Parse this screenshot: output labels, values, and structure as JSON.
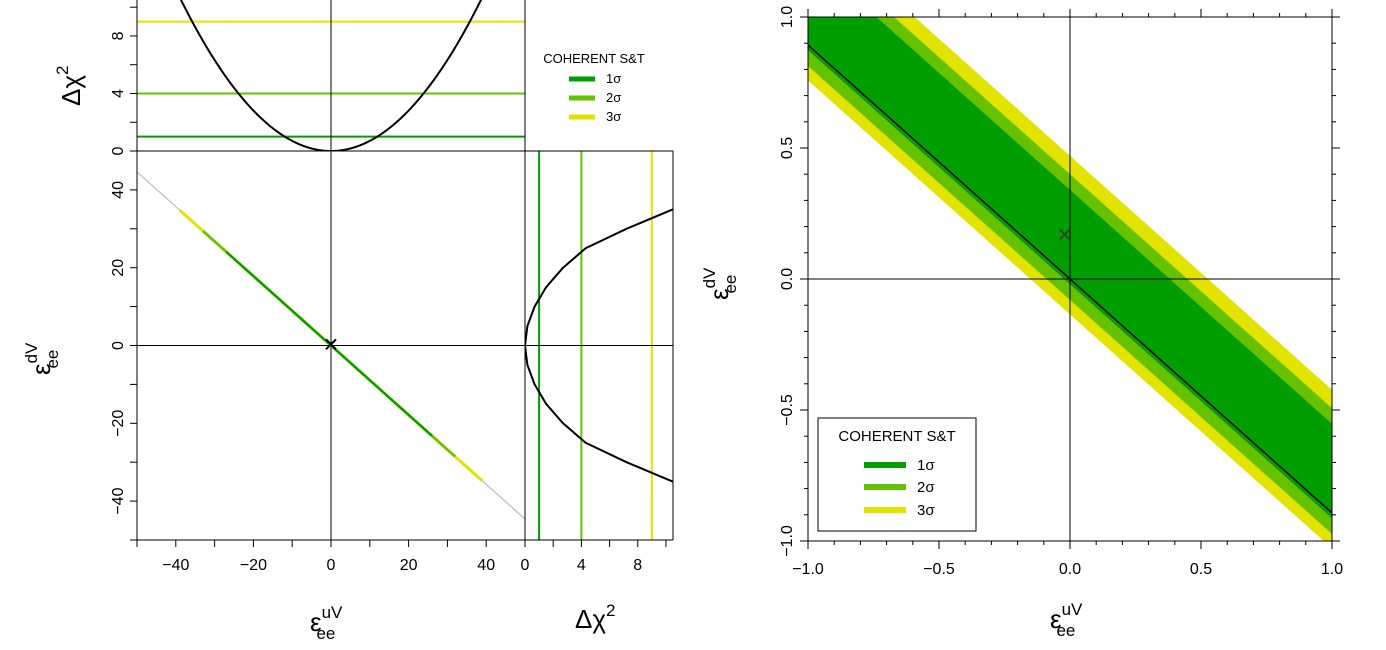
{
  "colors": {
    "sigma1": "#009E00",
    "sigma2": "#66C200",
    "sigma3": "#E3E300",
    "curve": "#000000",
    "grid": "#000000"
  },
  "legend": {
    "title": "COHERENT S&T",
    "items": [
      {
        "label": "1σ",
        "color": "#009E00"
      },
      {
        "label": "2σ",
        "color": "#66C200"
      },
      {
        "label": "3σ",
        "color": "#E3E300"
      }
    ]
  },
  "labels": {
    "eps_symbol": "ε",
    "eps_u_sup": "uV",
    "eps_d_sup": "dV",
    "eps_sub": "ee",
    "dchi_base": "Δχ",
    "dchi_sup": "2"
  },
  "chart_data": [
    {
      "id": "top-profile",
      "type": "line",
      "xlim": [
        -50,
        50
      ],
      "ylim": [
        0,
        10.5
      ],
      "yticks": [
        0,
        4,
        8
      ],
      "x": [
        -35,
        -30,
        -25,
        -20,
        -15,
        -10,
        -5,
        0,
        5,
        10,
        15,
        20,
        25,
        30,
        35
      ],
      "y": [
        8.6,
        6.3,
        4.4,
        2.8,
        1.6,
        0.72,
        0.18,
        0,
        0.18,
        0.72,
        1.6,
        2.8,
        4.4,
        6.3,
        8.6
      ],
      "levels": [
        1,
        4,
        9
      ]
    },
    {
      "id": "main-band",
      "type": "line",
      "xlim": [
        -50,
        50
      ],
      "ylim": [
        -50,
        50
      ],
      "xticks": [
        -40,
        -20,
        0,
        20,
        40
      ],
      "yticks": [
        -40,
        -20,
        0,
        20,
        40
      ],
      "gray_line": {
        "x": [
          -50,
          50
        ],
        "y": [
          44.6,
          -44.6
        ]
      },
      "band_3sigma": {
        "x": [
          -39,
          39
        ]
      },
      "band_2sigma": {
        "x": [
          -33,
          32
        ]
      },
      "band_1sigma": {
        "x": [
          -27,
          26
        ]
      },
      "best_fit": {
        "x": 0,
        "y": 0.3
      }
    },
    {
      "id": "right-profile",
      "type": "line",
      "xlim": [
        0,
        10.5
      ],
      "ylim": [
        -50,
        50
      ],
      "xticks": [
        0,
        4,
        8
      ],
      "y": [
        -35,
        -30,
        -25,
        -20,
        -15,
        -10,
        -5,
        0,
        5,
        10,
        15,
        20,
        25,
        30,
        35
      ],
      "x": [
        10.5,
        7.2,
        4.3,
        2.7,
        1.5,
        0.68,
        0.17,
        0,
        0.17,
        0.68,
        1.5,
        2.7,
        4.3,
        7.2,
        10.5
      ],
      "levels": [
        1,
        4,
        9
      ]
    },
    {
      "id": "zoom-band",
      "type": "area",
      "xlim": [
        -1,
        1
      ],
      "ylim": [
        -1,
        1
      ],
      "xticks": [
        -1.0,
        -0.5,
        0.0,
        0.5,
        1.0
      ],
      "xtick_labels": [
        "−1.0",
        "−0.5",
        "0.0",
        "0.5",
        "1.0"
      ],
      "yticks": [
        -1.0,
        -0.5,
        0.0,
        0.5,
        1.0
      ],
      "ytick_labels": [
        "−1.0",
        "−0.5",
        "0.0",
        "0.5",
        "1.0"
      ],
      "slope": -0.893,
      "center_line": {
        "x": [
          -1,
          1
        ],
        "y": [
          0.893,
          -0.893
        ]
      },
      "band_1sigma": {
        "lower_offset": -0.02,
        "upper_offset": 0.34
      },
      "band_2sigma": {
        "lower_offset": -0.08,
        "upper_offset": 0.4
      },
      "band_3sigma": {
        "lower_offset": -0.135,
        "upper_offset": 0.47
      },
      "best_fit": {
        "x": -0.02,
        "y": 0.17
      }
    }
  ]
}
